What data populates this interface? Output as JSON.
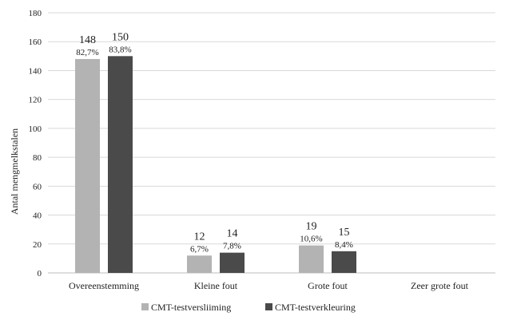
{
  "chart_data": {
    "type": "bar",
    "ylabel": "Antal mengmelkstalen",
    "ylim": [
      0,
      180
    ],
    "yticks": [
      0,
      20,
      40,
      60,
      80,
      100,
      120,
      140,
      160,
      180
    ],
    "grid": true,
    "legend_position": "bottom",
    "categories": [
      "Overeenstemming",
      "Kleine fout",
      "Grote fout",
      "Zeer grote fout"
    ],
    "series": [
      {
        "name": "CMT-testversliiming",
        "color": "#b3b3b3",
        "values": [
          148,
          12,
          19,
          null
        ],
        "percent_labels": [
          "82,7%",
          "6,7%",
          "10,6%",
          ""
        ]
      },
      {
        "name": "CMT-testverkleuring",
        "color": "#4a4a4a",
        "values": [
          150,
          14,
          15,
          null
        ],
        "percent_labels": [
          "83,8%",
          "7,8%",
          "8,4%",
          ""
        ]
      }
    ]
  }
}
